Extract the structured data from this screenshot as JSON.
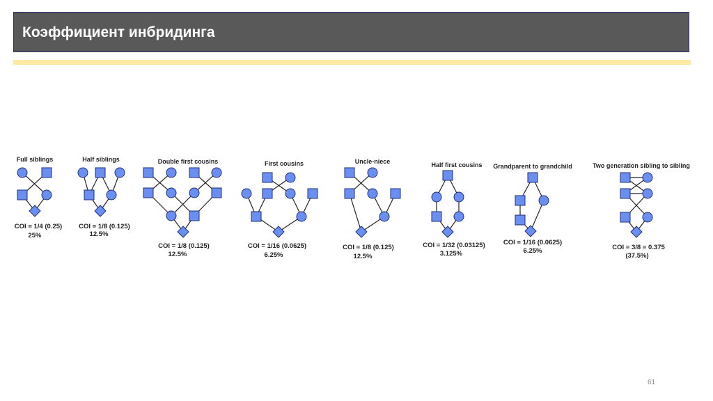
{
  "slide": {
    "title": "Коэффициент инбридинга",
    "page_number": "61",
    "accent_color": "#fde9a4",
    "title_bar_color": "#595959"
  },
  "pedigrees": [
    {
      "title": "Full siblings",
      "coi": "COI = 1/4 (0.25)",
      "percent": "25%"
    },
    {
      "title": "Half siblings",
      "coi": "COI = 1/8 (0.125)",
      "percent": "12.5%"
    },
    {
      "title": "Double first cousins",
      "coi": "COI = 1/8 (0.125)",
      "percent": "12.5%"
    },
    {
      "title": "First cousins",
      "coi": "COI = 1/16 (0.0625)",
      "percent": "6.25%"
    },
    {
      "title": "Uncle-niece",
      "coi": "COI = 1/8 (0.125)",
      "percent": "12.5%"
    },
    {
      "title": "Half first cousins",
      "coi": "COI = 1/32 (0.03125)",
      "percent": "3.125%"
    },
    {
      "title": "Grandparent to grandchild",
      "coi": "COI = 1/16 (0.0625)",
      "percent": "6.25%"
    },
    {
      "title": "Two generation sibling to sibling",
      "coi": "COI = 3/8 = 0.375",
      "percent": "(37.5%)"
    }
  ],
  "symbol_color": "#6b8ff0",
  "symbol_stroke": "#1f2f7a"
}
